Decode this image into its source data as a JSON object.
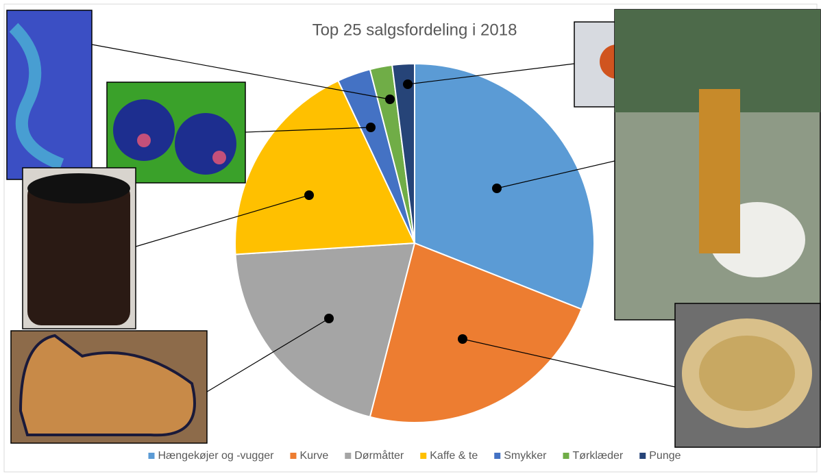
{
  "chart_data": {
    "type": "pie",
    "title": "Top 25 salgsfordeling i 2018",
    "categories": [
      "Hængekøjer og -vugger",
      "Kurve",
      "Dørmåtter",
      "Kaffe & te",
      "Smykker",
      "Tørklæder",
      "Punge"
    ],
    "values": [
      31,
      23,
      20,
      19,
      3,
      2,
      2
    ],
    "colors": [
      "#5b9bd5",
      "#ed7d31",
      "#a5a5a5",
      "#ffc000",
      "#4472c4",
      "#70ad47",
      "#264478"
    ],
    "legend": "bottom"
  }
}
